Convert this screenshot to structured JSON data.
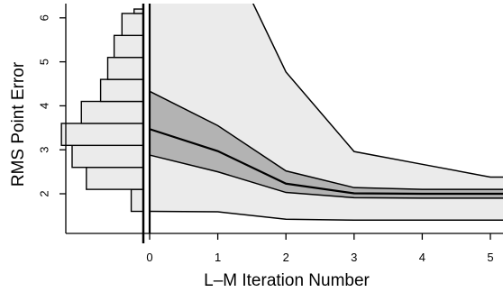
{
  "chart_data": {
    "type": "area",
    "title": "",
    "xlabel": "L–M Iteration Number",
    "ylabel": "RMS Point Error",
    "xlim": [
      -1.2,
      5.2
    ],
    "ylim": [
      1.1,
      6.2
    ],
    "x_ticks": [
      "0",
      "1",
      "2",
      "3",
      "4",
      "5"
    ],
    "y_ticks": [
      "2",
      "3",
      "4",
      "5",
      "6"
    ],
    "x": [
      0,
      1,
      2,
      3,
      4,
      5
    ],
    "bands": [
      {
        "name": "",
        "color": "#ebebeb",
        "lower": [
          1.6,
          1.59,
          1.42,
          1.4,
          1.4,
          1.4
        ],
        "upper": [
          8.0,
          8.0,
          4.77,
          2.96,
          2.67,
          2.38
        ]
      },
      {
        "name": "",
        "color": "#b3b3b3",
        "lower": [
          2.88,
          2.5,
          2.03,
          1.91,
          1.9,
          1.9
        ],
        "upper": [
          4.33,
          3.55,
          2.52,
          2.14,
          2.1,
          2.1
        ]
      }
    ],
    "series": [
      {
        "name": "",
        "values": [
          3.47,
          2.97,
          2.23,
          2.01,
          2.0,
          2.0
        ]
      }
    ],
    "histogram": {
      "orientation": "horizontal",
      "bin_edges": [
        1.6,
        2.1,
        2.6,
        3.1,
        3.6,
        4.1,
        4.6,
        5.1,
        5.6,
        6.1,
        6.2
      ],
      "counts": [
        0.17,
        0.8,
        1.0,
        1.15,
        0.87,
        0.6,
        0.5,
        0.41,
        0.3,
        0.13
      ]
    },
    "grid": false,
    "legend": "none"
  }
}
